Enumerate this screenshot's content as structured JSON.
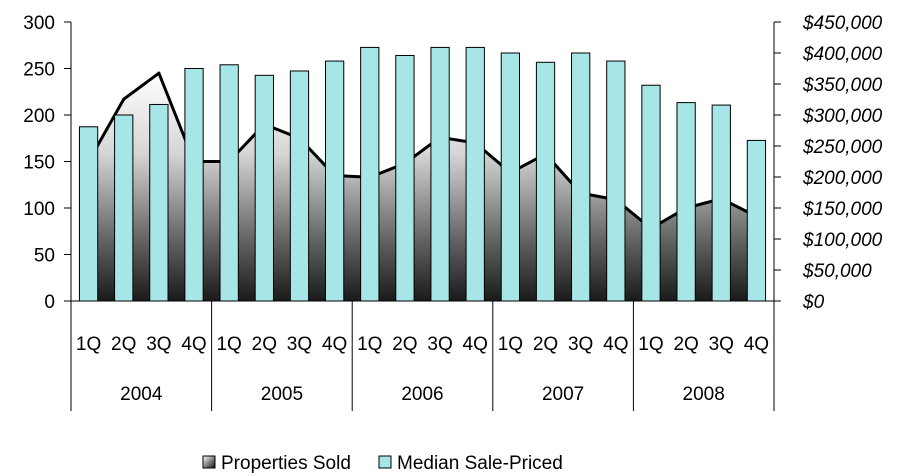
{
  "chart_data": {
    "type": "bar",
    "categories": [
      "1Q",
      "2Q",
      "3Q",
      "4Q",
      "1Q",
      "2Q",
      "3Q",
      "4Q",
      "1Q",
      "2Q",
      "3Q",
      "4Q",
      "1Q",
      "2Q",
      "3Q",
      "4Q",
      "1Q",
      "2Q",
      "3Q",
      "4Q"
    ],
    "groups": [
      {
        "label": "2004",
        "start": 0,
        "count": 4
      },
      {
        "label": "2005",
        "start": 4,
        "count": 4
      },
      {
        "label": "2006",
        "start": 8,
        "count": 4
      },
      {
        "label": "2007",
        "start": 12,
        "count": 4
      },
      {
        "label": "2008",
        "start": 16,
        "count": 4
      }
    ],
    "series": [
      {
        "name": "Properties Sold",
        "type": "area",
        "axis": "left",
        "values": [
          150,
          217,
          245,
          150,
          150,
          190,
          175,
          135,
          133,
          148,
          176,
          170,
          138,
          158,
          116,
          109,
          78,
          100,
          110,
          91
        ]
      },
      {
        "name": "Median Sale-Priced",
        "type": "bar",
        "axis": "right",
        "color": "#a7e6e6",
        "values": [
          281000,
          300000,
          317000,
          375000,
          381000,
          364000,
          371000,
          387000,
          409000,
          396000,
          409000,
          409000,
          400000,
          385000,
          400000,
          387000,
          348000,
          320000,
          316000,
          259000
        ]
      }
    ],
    "yleft": {
      "min": 0,
      "max": 300,
      "ticks": [
        0,
        50,
        100,
        150,
        200,
        250,
        300
      ]
    },
    "yright": {
      "min": 0,
      "max": 450000,
      "ticks": [
        0,
        50000,
        100000,
        150000,
        200000,
        250000,
        300000,
        350000,
        400000,
        450000
      ],
      "tick_labels": [
        "$0",
        "$50,000",
        "$100,000",
        "$150,000",
        "$200,000",
        "$250,000",
        "$300,000",
        "$350,000",
        "$400,000",
        "$450,000"
      ]
    },
    "legend": {
      "position": "bottom",
      "entries": [
        {
          "label": "Properties Sold",
          "color": "#333333"
        },
        {
          "label": "Median Sale-Priced",
          "color": "#a7e6e6"
        }
      ]
    },
    "grid": false
  }
}
